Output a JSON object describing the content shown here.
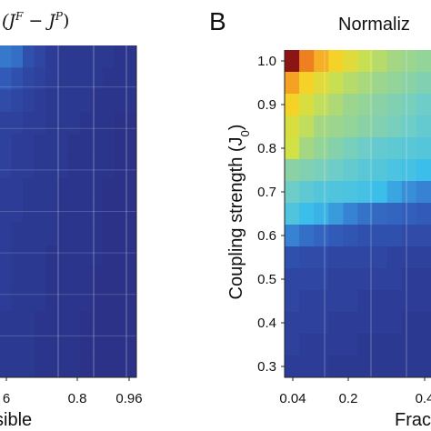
{
  "chart_data": [
    {
      "type": "heatmap",
      "title": "(J^F − J^P)",
      "xlabel": "sible",
      "ylabel": "",
      "x_tick_labels": [
        "6",
        "0.8",
        "0.96"
      ],
      "columns_visible": 12,
      "rows_visible": 15,
      "values": [
        [
          0.18,
          0.16,
          0.1,
          0.08,
          0.06,
          0.05,
          0.05,
          0.05,
          0.05,
          0.05,
          0.04,
          0.04
        ],
        [
          0.12,
          0.1,
          0.08,
          0.07,
          0.06,
          0.05,
          0.05,
          0.05,
          0.05,
          0.04,
          0.04,
          0.04
        ],
        [
          0.09,
          0.08,
          0.07,
          0.06,
          0.05,
          0.05,
          0.05,
          0.05,
          0.04,
          0.04,
          0.04,
          0.04
        ],
        [
          0.07,
          0.07,
          0.06,
          0.06,
          0.05,
          0.05,
          0.05,
          0.04,
          0.04,
          0.04,
          0.03,
          0.03
        ],
        [
          0.07,
          0.06,
          0.06,
          0.05,
          0.05,
          0.05,
          0.04,
          0.04,
          0.04,
          0.04,
          0.03,
          0.03
        ],
        [
          0.07,
          0.06,
          0.06,
          0.05,
          0.05,
          0.05,
          0.04,
          0.04,
          0.04,
          0.04,
          0.03,
          0.03
        ],
        [
          0.06,
          0.06,
          0.05,
          0.05,
          0.05,
          0.04,
          0.04,
          0.04,
          0.04,
          0.03,
          0.03,
          0.03
        ],
        [
          0.06,
          0.06,
          0.05,
          0.05,
          0.05,
          0.04,
          0.04,
          0.04,
          0.04,
          0.03,
          0.03,
          0.03
        ],
        [
          0.06,
          0.05,
          0.05,
          0.05,
          0.05,
          0.04,
          0.04,
          0.04,
          0.04,
          0.03,
          0.03,
          0.03
        ],
        [
          0.06,
          0.05,
          0.05,
          0.05,
          0.04,
          0.04,
          0.04,
          0.04,
          0.04,
          0.03,
          0.03,
          0.03
        ],
        [
          0.06,
          0.05,
          0.05,
          0.05,
          0.04,
          0.04,
          0.04,
          0.04,
          0.03,
          0.03,
          0.03,
          0.03
        ],
        [
          0.06,
          0.05,
          0.05,
          0.05,
          0.04,
          0.04,
          0.04,
          0.04,
          0.03,
          0.03,
          0.03,
          0.03
        ],
        [
          0.05,
          0.05,
          0.05,
          0.04,
          0.04,
          0.04,
          0.04,
          0.03,
          0.03,
          0.03,
          0.03,
          0.03
        ],
        [
          0.05,
          0.05,
          0.05,
          0.04,
          0.04,
          0.04,
          0.04,
          0.03,
          0.03,
          0.03,
          0.03,
          0.03
        ],
        [
          0.05,
          0.05,
          0.05,
          0.04,
          0.04,
          0.04,
          0.04,
          0.03,
          0.03,
          0.03,
          0.03,
          0.03
        ]
      ]
    },
    {
      "type": "heatmap",
      "panel_letter": "B",
      "title": "Normaliz",
      "xlabel": "Frac",
      "ylabel": "Coupling strength (J₀)",
      "x_tick_labels": [
        "0.04",
        "0.2",
        "0.4"
      ],
      "y_tick_labels": [
        "1.0",
        "0.9",
        "0.8",
        "0.7",
        "0.6",
        "0.5",
        "0.4",
        "0.3"
      ],
      "yrange": [
        0.25,
        1.05
      ],
      "rows_y": [
        1.0,
        0.95,
        0.9,
        0.85,
        0.8,
        0.75,
        0.7,
        0.65,
        0.6,
        0.55,
        0.5,
        0.45,
        0.4,
        0.35,
        0.3
      ],
      "columns_visible": 10,
      "values": [
        [
          1.0,
          0.85,
          0.78,
          0.72,
          0.66,
          0.6,
          0.56,
          0.52,
          0.5,
          0.48
        ],
        [
          0.8,
          0.72,
          0.66,
          0.6,
          0.56,
          0.53,
          0.5,
          0.48,
          0.46,
          0.44
        ],
        [
          0.72,
          0.64,
          0.58,
          0.54,
          0.5,
          0.48,
          0.46,
          0.44,
          0.42,
          0.4
        ],
        [
          0.64,
          0.58,
          0.52,
          0.5,
          0.48,
          0.46,
          0.44,
          0.42,
          0.4,
          0.38
        ],
        [
          0.62,
          0.52,
          0.48,
          0.45,
          0.42,
          0.4,
          0.38,
          0.37,
          0.36,
          0.35
        ],
        [
          0.46,
          0.44,
          0.42,
          0.4,
          0.38,
          0.36,
          0.35,
          0.33,
          0.32,
          0.3
        ],
        [
          0.4,
          0.37,
          0.35,
          0.34,
          0.33,
          0.32,
          0.3,
          0.26,
          0.22,
          0.2
        ],
        [
          0.34,
          0.3,
          0.28,
          0.24,
          0.2,
          0.17,
          0.15,
          0.14,
          0.13,
          0.12
        ],
        [
          0.2,
          0.16,
          0.14,
          0.12,
          0.11,
          0.1,
          0.1,
          0.1,
          0.09,
          0.09
        ],
        [
          0.1,
          0.09,
          0.09,
          0.08,
          0.08,
          0.08,
          0.08,
          0.07,
          0.07,
          0.07
        ],
        [
          0.08,
          0.08,
          0.08,
          0.07,
          0.07,
          0.07,
          0.07,
          0.07,
          0.06,
          0.06
        ],
        [
          0.08,
          0.07,
          0.07,
          0.07,
          0.07,
          0.06,
          0.06,
          0.06,
          0.06,
          0.06
        ],
        [
          0.07,
          0.07,
          0.07,
          0.06,
          0.06,
          0.06,
          0.06,
          0.06,
          0.05,
          0.05
        ],
        [
          0.07,
          0.06,
          0.06,
          0.06,
          0.06,
          0.05,
          0.05,
          0.05,
          0.05,
          0.05
        ],
        [
          0.06,
          0.06,
          0.06,
          0.05,
          0.05,
          0.05,
          0.05,
          0.05,
          0.05,
          0.05
        ]
      ]
    }
  ]
}
